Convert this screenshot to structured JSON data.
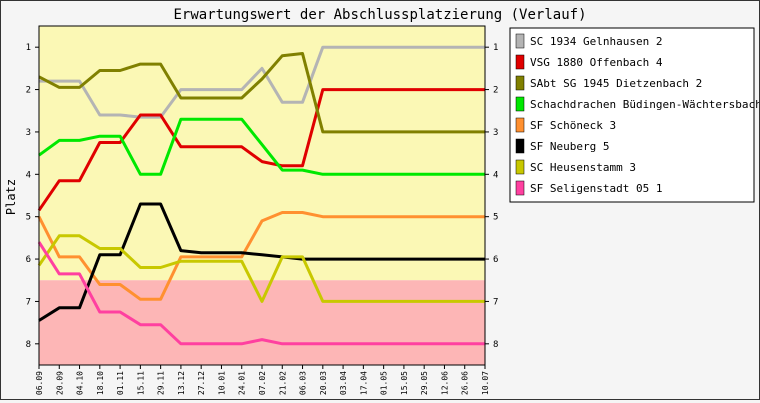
{
  "chart_data": {
    "type": "line",
    "title": "Erwartungswert der Abschlussplatzierung (Verlauf)",
    "ylabel": "Platz",
    "xlabel": "",
    "ylim": [
      1,
      8
    ],
    "y_inverted": true,
    "yticks": [
      1,
      2,
      3,
      4,
      5,
      6,
      7,
      8
    ],
    "grid": false,
    "legend_position": "right",
    "zones": [
      {
        "from": 0.5,
        "to": 6.5,
        "color": "#fbf8b5"
      },
      {
        "from": 6.5,
        "to": 8.5,
        "color": "#fdb6b6"
      }
    ],
    "x": [
      "06.09",
      "20.09",
      "04.10",
      "18.10",
      "01.11",
      "15.11",
      "29.11",
      "13.12",
      "27.12",
      "10.01",
      "24.01",
      "07.02",
      "21.02",
      "06.03",
      "20.03",
      "03.04",
      "17.04",
      "01.05",
      "15.05",
      "29.05",
      "12.06",
      "26.06",
      "10.07"
    ],
    "series": [
      {
        "name": "SC 1934 Gelnhausen 2",
        "color": "#b4b4b4",
        "values": [
          1.8,
          1.8,
          1.8,
          2.6,
          2.6,
          2.65,
          2.65,
          2.0,
          2.0,
          2.0,
          2.0,
          1.5,
          2.3,
          2.3,
          1.0,
          1.0,
          1.0,
          1.0,
          1.0,
          1.0,
          1.0,
          1.0,
          1.0
        ]
      },
      {
        "name": "VSG 1880 Offenbach 4",
        "color": "#e00000",
        "values": [
          4.85,
          4.15,
          4.15,
          3.25,
          3.25,
          2.6,
          2.6,
          3.35,
          3.35,
          3.35,
          3.35,
          3.7,
          3.8,
          3.8,
          2.0,
          2.0,
          2.0,
          2.0,
          2.0,
          2.0,
          2.0,
          2.0,
          2.0
        ]
      },
      {
        "name": "SAbt SG 1945 Dietzenbach 2",
        "color": "#808000",
        "values": [
          1.7,
          1.95,
          1.95,
          1.55,
          1.55,
          1.4,
          1.4,
          2.2,
          2.2,
          2.2,
          2.2,
          1.75,
          1.2,
          1.15,
          3.0,
          3.0,
          3.0,
          3.0,
          3.0,
          3.0,
          3.0,
          3.0,
          3.0
        ]
      },
      {
        "name": "Schachdrachen Büdingen-Wächtersbach 3",
        "color": "#00e800",
        "values": [
          3.55,
          3.2,
          3.2,
          3.1,
          3.1,
          4.0,
          4.0,
          2.7,
          2.7,
          2.7,
          2.7,
          3.3,
          3.9,
          3.9,
          4.0,
          4.0,
          4.0,
          4.0,
          4.0,
          4.0,
          4.0,
          4.0,
          4.0
        ]
      },
      {
        "name": "SF Schöneck 3",
        "color": "#ff9030",
        "values": [
          5.0,
          5.95,
          5.95,
          6.6,
          6.6,
          6.95,
          6.95,
          5.95,
          5.95,
          5.95,
          5.95,
          5.1,
          4.9,
          4.9,
          5.0,
          5.0,
          5.0,
          5.0,
          5.0,
          5.0,
          5.0,
          5.0,
          5.0
        ]
      },
      {
        "name": "SF Neuberg 5",
        "color": "#000000",
        "values": [
          7.45,
          7.15,
          7.15,
          5.9,
          5.9,
          4.7,
          4.7,
          5.8,
          5.85,
          5.85,
          5.85,
          5.9,
          5.95,
          6.0,
          6.0,
          6.0,
          6.0,
          6.0,
          6.0,
          6.0,
          6.0,
          6.0,
          6.0
        ]
      },
      {
        "name": "SC Heusenstamm 3",
        "color": "#c8c800",
        "values": [
          6.15,
          5.45,
          5.45,
          5.75,
          5.75,
          6.2,
          6.2,
          6.05,
          6.05,
          6.05,
          6.05,
          7.0,
          5.95,
          5.95,
          7.0,
          7.0,
          7.0,
          7.0,
          7.0,
          7.0,
          7.0,
          7.0,
          7.0
        ]
      },
      {
        "name": "SF Seligenstadt 05 1",
        "color": "#ff40a0",
        "values": [
          5.6,
          6.35,
          6.35,
          7.25,
          7.25,
          7.55,
          7.55,
          8.0,
          8.0,
          8.0,
          8.0,
          7.9,
          8.0,
          8.0,
          8.0,
          8.0,
          8.0,
          8.0,
          8.0,
          8.0,
          8.0,
          8.0,
          8.0
        ]
      }
    ]
  }
}
